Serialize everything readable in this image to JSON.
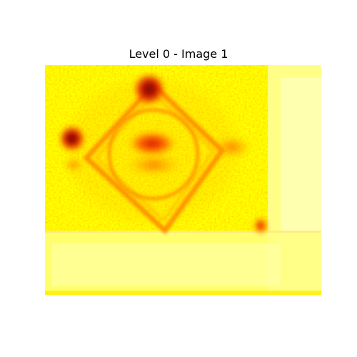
{
  "figure": {
    "title": "Level 0 - Image 1"
  },
  "heatmap": {
    "colormap": "hot",
    "colors": {
      "background": "#ffff00",
      "pale": "#ffff99",
      "light": "#ffffcc",
      "orange": "#ff8c00",
      "red": "#e00000",
      "dark": "#8b0000"
    }
  }
}
